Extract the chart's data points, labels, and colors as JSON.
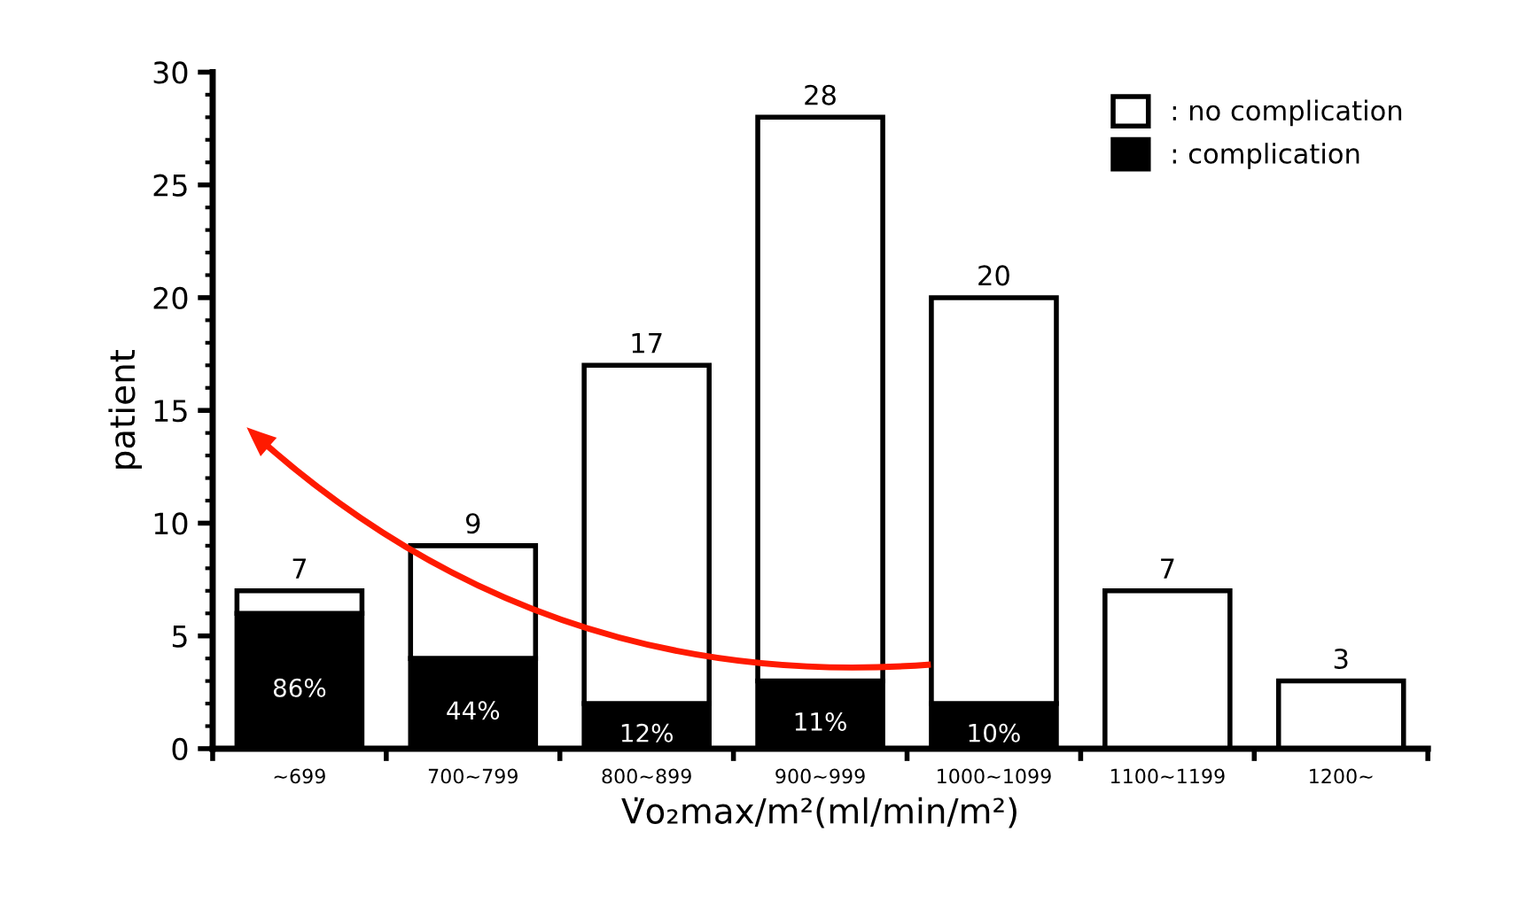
{
  "chart_data": {
    "type": "bar",
    "stacked": true,
    "categories": [
      "~699",
      "700~799",
      "800~899",
      "900~999",
      "1000~1099",
      "1100~1199",
      "1200~"
    ],
    "series": [
      {
        "name": ": complication",
        "color": "#000000",
        "values": [
          6,
          4,
          2,
          3,
          2,
          0,
          0
        ]
      },
      {
        "name": ": no complication",
        "color": "#ffffff",
        "values": [
          1,
          5,
          15,
          25,
          18,
          7,
          3
        ]
      }
    ],
    "annotations": [
      "86%",
      "44%",
      "12%",
      "11%",
      "10%"
    ],
    "totals": [
      "7",
      "9",
      "17",
      "28",
      "20",
      "7",
      "3"
    ],
    "xlabel": "V̇o₂max/m²(ml/min/m²)",
    "ylabel": "patient",
    "ylim": [
      0,
      30
    ],
    "yticks": [
      0,
      5,
      10,
      15,
      20,
      25,
      30
    ],
    "legend": "top right",
    "grid": false
  }
}
